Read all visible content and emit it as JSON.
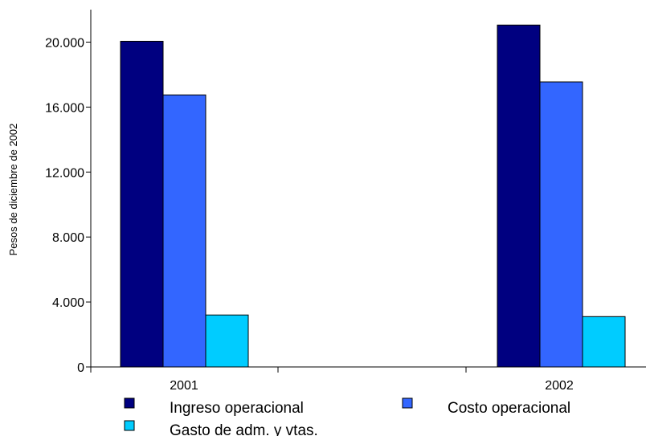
{
  "chart_data": {
    "type": "bar",
    "title": "",
    "xlabel": "",
    "ylabel": "Pesos de diciembre de 2002",
    "categories": [
      "2001",
      "2002"
    ],
    "series": [
      {
        "name": "Ingreso operacional",
        "color": "#000080",
        "values": [
          20050,
          21050
        ]
      },
      {
        "name": "Costo operacional",
        "color": "#3366FF",
        "values": [
          16750,
          17550
        ]
      },
      {
        "name": "Gasto de adm. y vtas.",
        "color": "#00CCFF",
        "values": [
          3200,
          3100
        ]
      }
    ],
    "ylim": [
      0,
      22000
    ],
    "yticks": [
      0,
      4000,
      8000,
      12000,
      16000,
      20000
    ],
    "ytick_labels": [
      "0",
      "4.000",
      "8.000",
      "12.000",
      "16.000",
      "20.000"
    ],
    "grid": false,
    "legend_position": "bottom"
  }
}
